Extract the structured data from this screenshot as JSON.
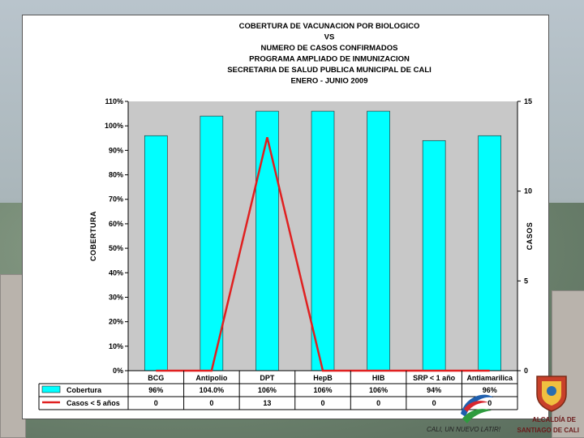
{
  "title_lines": [
    "COBERTURA DE VACUNACION POR BIOLOGICO",
    "VS",
    "NUMERO DE CASOS CONFIRMADOS",
    "PROGRAMA AMPLIADO DE INMUNIZACION",
    "SECRETARIA DE SALUD PUBLICA MUNICIPAL DE CALI",
    "ENERO - JUNIO 2009"
  ],
  "chart_data": {
    "type": "bar",
    "categories": [
      "BCG",
      "Antipolio",
      "DPT",
      "HepB",
      "HIB",
      "SRP < 1 año",
      "Antiamarilica"
    ],
    "series": [
      {
        "name": "Cobertura",
        "kind": "bar",
        "axis": "left",
        "values": [
          96,
          104,
          106,
          106,
          106,
          94,
          96
        ],
        "color": "#00ffff"
      },
      {
        "name": "Casos < 5 años",
        "kind": "line",
        "axis": "right",
        "values": [
          0,
          0,
          13,
          0,
          0,
          0,
          0
        ],
        "color": "#e02020"
      }
    ],
    "ylabel": "COBERTURA",
    "y2label": "CASOS",
    "ylim": [
      0,
      110
    ],
    "y2lim": [
      0,
      15
    ],
    "yticks": [
      "0%",
      "10%",
      "20%",
      "30%",
      "40%",
      "50%",
      "60%",
      "70%",
      "80%",
      "90%",
      "100%",
      "110%"
    ],
    "y2ticks": [
      "0",
      "5",
      "10",
      "15"
    ],
    "grid": false,
    "legend": "table-below"
  },
  "table": {
    "rows": [
      {
        "label": "Cobertura",
        "cells": [
          "96%",
          "104.0%",
          "106%",
          "106%",
          "106%",
          "94%",
          "96%"
        ]
      },
      {
        "label": "Casos < 5 años",
        "cells": [
          "0",
          "0",
          "13",
          "0",
          "0",
          "0",
          "0"
        ]
      }
    ]
  },
  "logo": {
    "slogan": "CALI, UN NUEVO LATIR!",
    "org_line1": "ALCALDÍA DE",
    "org_line2": "SANTIAGO DE CALI"
  }
}
